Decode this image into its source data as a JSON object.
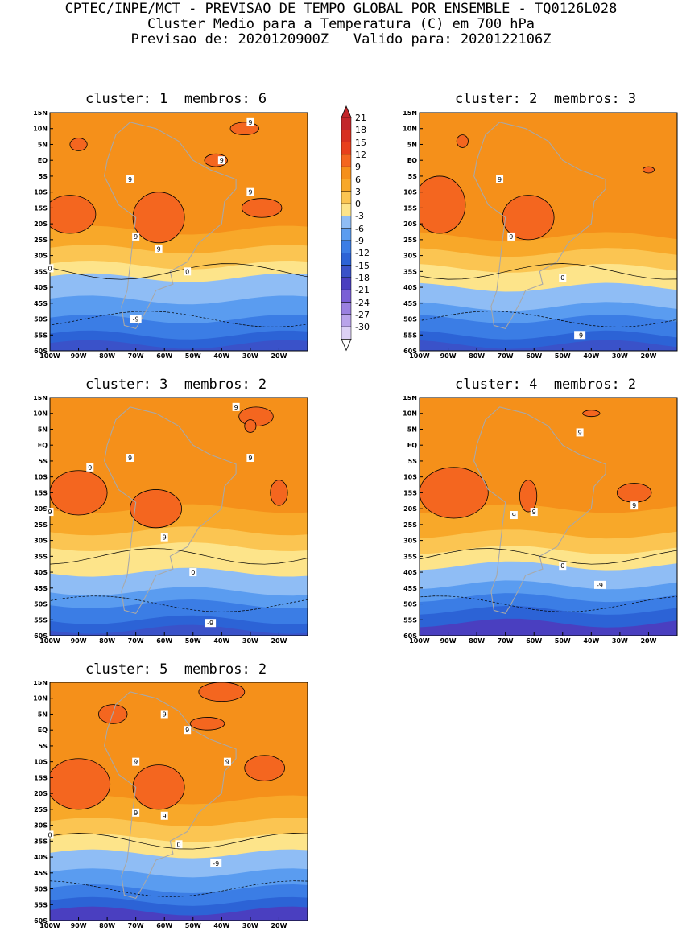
{
  "header": {
    "line1": "CPTEC/INPE/MCT - PREVISAO DE TEMPO GLOBAL POR ENSEMBLE - TQ0126L028",
    "line2": "Cluster Medio para a Temperatura (C) em 700 hPa",
    "line3": "Previsao de: 2020120900Z   Valido para: 2020122106Z"
  },
  "panels": [
    {
      "title": "cluster: 1  membros: 6",
      "contour_labels": [
        "9",
        "9",
        "9",
        "9",
        "9",
        "9",
        "0",
        "0",
        "-9"
      ]
    },
    {
      "title": "cluster: 2  membros: 3",
      "contour_labels": [
        "9",
        "9",
        "0",
        "-9"
      ]
    },
    {
      "title": "cluster: 3  membros: 2",
      "contour_labels": [
        "9",
        "9",
        "9",
        "9",
        "9",
        "9",
        "0",
        "-9"
      ]
    },
    {
      "title": "cluster: 4  membros: 2",
      "contour_labels": [
        "9",
        "9",
        "9",
        "9",
        "0",
        "-9"
      ]
    },
    {
      "title": "cluster: 5  membros: 2",
      "contour_labels": [
        "9",
        "9",
        "9",
        "9",
        "9",
        "9",
        "0",
        "0",
        "-9"
      ]
    }
  ],
  "axes": {
    "lat_labels": [
      "15N",
      "10N",
      "5N",
      "EQ",
      "5S",
      "10S",
      "15S",
      "20S",
      "25S",
      "30S",
      "35S",
      "40S",
      "45S",
      "50S",
      "55S",
      "60S"
    ],
    "lon_labels": [
      "100W",
      "90W",
      "80W",
      "70W",
      "60W",
      "50W",
      "40W",
      "30W",
      "20W"
    ]
  },
  "colorbar": {
    "labels": [
      "21",
      "18",
      "15",
      "12",
      "9",
      "6",
      "3",
      "0",
      "-3",
      "-6",
      "-9",
      "-12",
      "-15",
      "-18",
      "-21",
      "-24",
      "-27",
      "-30"
    ],
    "colors": {
      "c_high": "#c2262a",
      "c18": "#d7301f",
      "c15": "#e8401c",
      "c12": "#f4661f",
      "c9": "#f5901a",
      "c6": "#f8a829",
      "c3": "#fbc552",
      "c0": "#fde48a",
      "cm3": "#8fbdf5",
      "cm6": "#5a9cf0",
      "cm9": "#3b7de5",
      "cm12": "#2c63d6",
      "cm15": "#3a52c9",
      "cm18": "#4a3fc0",
      "cm21": "#7a5fd6",
      "cm24": "#9a80e0",
      "cm27": "#b9a3ea",
      "cm30": "#dcd0f5"
    }
  }
}
